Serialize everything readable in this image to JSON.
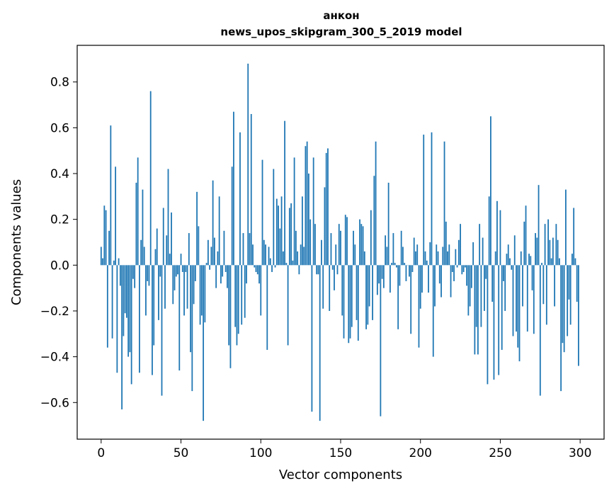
{
  "chart_data": {
    "type": "bar",
    "title": "анкон",
    "subtitle": "news_upos_skipgram_300_5_2019 model",
    "xlabel": "Vector components",
    "ylabel": "Components values",
    "xlim": [
      -15,
      315
    ],
    "ylim": [
      -0.76,
      0.96
    ],
    "x_ticks": [
      0,
      50,
      100,
      150,
      200,
      250,
      300
    ],
    "x_tick_labels": [
      "0",
      "50",
      "100",
      "150",
      "200",
      "250",
      "300"
    ],
    "y_ticks": [
      -0.6,
      -0.4,
      -0.2,
      0.0,
      0.2,
      0.4,
      0.6,
      0.8
    ],
    "y_tick_labels": [
      "−0.6",
      "−0.4",
      "−0.2",
      "0.0",
      "0.2",
      "0.4",
      "0.6",
      "0.8"
    ],
    "grid": false,
    "bar_color": "#1f77b4",
    "values": [
      0.08,
      0.03,
      0.26,
      0.24,
      -0.36,
      0.15,
      0.61,
      -0.32,
      0.02,
      0.43,
      -0.47,
      0.03,
      -0.09,
      -0.63,
      -0.31,
      -0.21,
      -0.23,
      -0.4,
      -0.38,
      -0.52,
      -0.06,
      -0.1,
      0.36,
      0.47,
      -0.47,
      0.11,
      0.33,
      0.08,
      -0.22,
      -0.07,
      -0.09,
      0.76,
      -0.48,
      -0.35,
      0.07,
      0.16,
      -0.24,
      -0.05,
      -0.57,
      0.25,
      -0.19,
      0.13,
      0.42,
      0.05,
      0.23,
      -0.17,
      -0.11,
      -0.05,
      -0.04,
      -0.46,
      0.05,
      -0.03,
      -0.22,
      -0.03,
      -0.19,
      0.14,
      -0.38,
      -0.55,
      -0.17,
      -0.07,
      0.32,
      0.17,
      -0.26,
      -0.22,
      -0.68,
      -0.25,
      0.01,
      0.11,
      -0.02,
      0.08,
      0.37,
      0.12,
      -0.1,
      0.06,
      0.3,
      -0.08,
      -0.05,
      0.15,
      -0.03,
      -0.1,
      -0.35,
      -0.45,
      0.43,
      0.67,
      -0.27,
      -0.35,
      -0.3,
      0.58,
      -0.26,
      0.14,
      -0.23,
      -0.08,
      0.88,
      0.14,
      0.66,
      0.09,
      -0.01,
      -0.03,
      -0.04,
      -0.08,
      -0.22,
      0.46,
      0.11,
      0.09,
      -0.37,
      0.08,
      0.03,
      -0.03,
      0.42,
      -0.01,
      0.29,
      0.26,
      0.16,
      0.3,
      0.06,
      0.63,
      0.01,
      -0.35,
      0.25,
      0.27,
      0.02,
      0.47,
      0.15,
      0.06,
      -0.04,
      0.09,
      0.3,
      0.08,
      0.52,
      0.54,
      0.4,
      0.2,
      -0.64,
      0.47,
      0.18,
      -0.04,
      -0.04,
      -0.68,
      0.11,
      -0.19,
      0.34,
      0.49,
      0.51,
      -0.2,
      0.14,
      -0.02,
      -0.11,
      0.09,
      -0.04,
      0.18,
      0.15,
      -0.22,
      -0.32,
      0.22,
      0.21,
      -0.34,
      -0.32,
      -0.27,
      0.15,
      0.09,
      -0.24,
      -0.33,
      0.2,
      0.18,
      0.17,
      0.06,
      -0.28,
      -0.26,
      -0.18,
      0.24,
      -0.24,
      0.39,
      0.54,
      -0.13,
      -0.08,
      -0.66,
      -0.06,
      -0.1,
      0.13,
      0.08,
      0.36,
      -0.12,
      0.01,
      0.14,
      0.01,
      -0.01,
      -0.28,
      -0.09,
      0.15,
      0.08,
      0.01,
      -0.07,
      0.0,
      -0.05,
      -0.3,
      -0.03,
      0.12,
      0.06,
      0.09,
      -0.36,
      -0.19,
      -0.12,
      0.57,
      0.06,
      0.02,
      -0.12,
      0.1,
      0.58,
      -0.4,
      -0.18,
      0.09,
      0.06,
      -0.08,
      -0.14,
      0.08,
      0.54,
      0.19,
      0.06,
      0.09,
      -0.14,
      -0.03,
      -0.07,
      0.07,
      -0.01,
      0.11,
      0.18,
      -0.04,
      -0.03,
      -0.01,
      -0.09,
      -0.22,
      -0.18,
      -0.1,
      0.1,
      -0.39,
      -0.27,
      -0.39,
      0.18,
      -0.27,
      0.12,
      -0.2,
      -0.06,
      -0.52,
      0.3,
      0.65,
      -0.16,
      -0.5,
      0.06,
      0.28,
      -0.48,
      0.24,
      -0.37,
      -0.07,
      -0.2,
      0.05,
      0.09,
      0.03,
      -0.02,
      -0.31,
      0.13,
      -0.29,
      -0.36,
      -0.42,
      0.06,
      -0.18,
      0.19,
      0.26,
      -0.29,
      0.05,
      0.04,
      -0.11,
      -0.3,
      0.14,
      0.12,
      0.35,
      -0.57,
      0.01,
      -0.17,
      0.18,
      -0.26,
      0.2,
      0.11,
      0.03,
      0.12,
      -0.18,
      0.18,
      0.11,
      0.03,
      -0.55,
      -0.34,
      -0.38,
      0.33,
      -0.31,
      -0.15,
      -0.26,
      0.05,
      0.25,
      0.03,
      -0.16,
      -0.44
    ]
  }
}
